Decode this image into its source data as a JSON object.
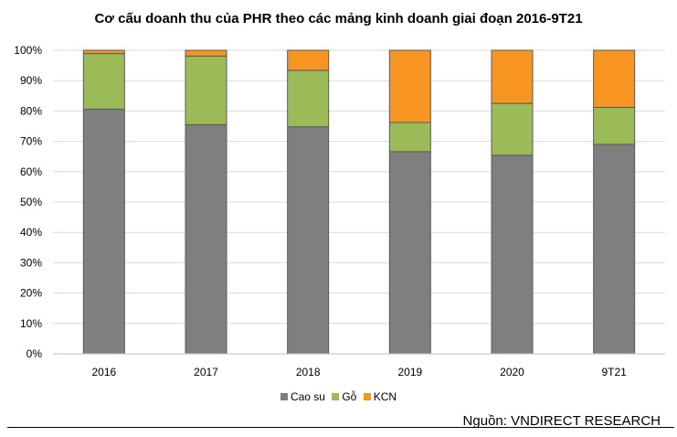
{
  "chart_data": {
    "type": "bar",
    "stacked": true,
    "title": "Cơ cấu doanh thu của PHR theo các mảng kinh doanh giai đoạn 2016-9T21",
    "categories": [
      "2016",
      "2017",
      "2018",
      "2019",
      "2020",
      "9T21"
    ],
    "series": [
      {
        "name": "Cao su",
        "color": "#7f7f7f",
        "values": [
          80.6,
          75.5,
          74.8,
          66.6,
          65.4,
          69.0
        ]
      },
      {
        "name": "Gỗ",
        "color": "#9bbb59",
        "values": [
          18.3,
          22.6,
          18.6,
          9.6,
          17.1,
          12.2
        ]
      },
      {
        "name": "KCN",
        "color": "#f79522",
        "values": [
          1.1,
          1.9,
          6.6,
          23.8,
          17.5,
          18.8
        ]
      }
    ],
    "yticks": [
      "0%",
      "10%",
      "20%",
      "30%",
      "40%",
      "50%",
      "60%",
      "70%",
      "80%",
      "90%",
      "100%"
    ],
    "ylim": [
      0,
      100
    ],
    "grid": true,
    "legend_position": "bottom"
  },
  "source": "Nguồn: VNDIRECT RESEARCH"
}
